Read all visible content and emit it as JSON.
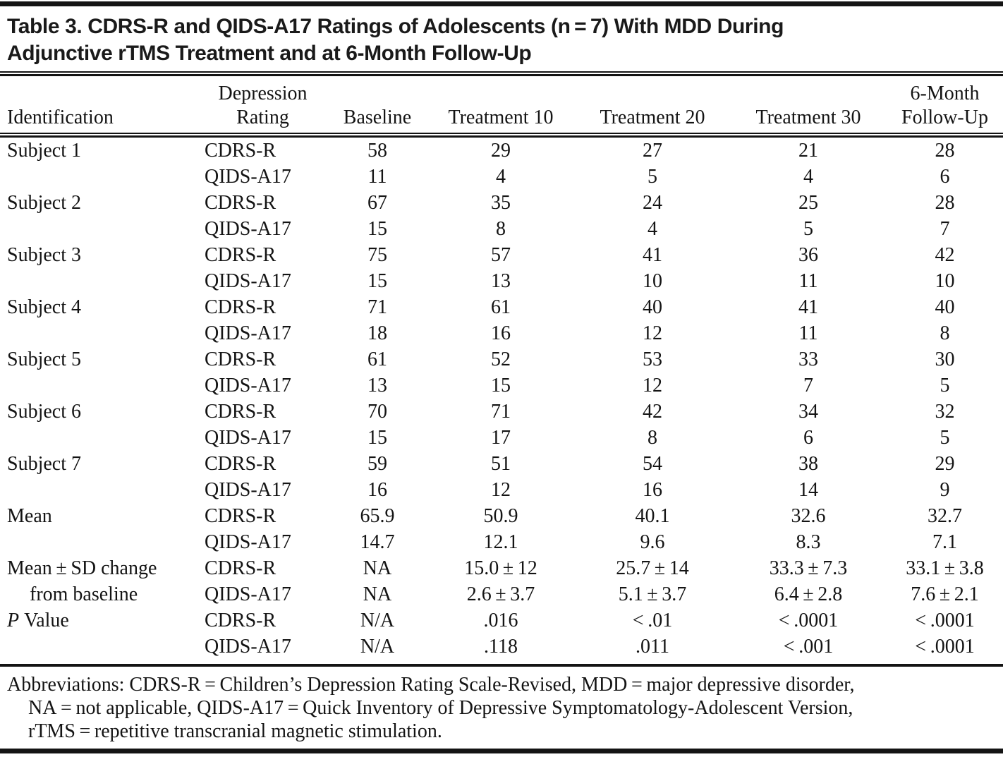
{
  "title": {
    "line1": "Table 3. CDRS-R and QIDS-A17 Ratings of Adolescents (n = 7) With MDD During",
    "line2": "Adjunctive rTMS Treatment and at 6-Month Follow-Up"
  },
  "table": {
    "header": {
      "identification": "Identification",
      "rating_line1": "Depression",
      "rating_line2": "Rating",
      "baseline": "Baseline",
      "treatment10": "Treatment 10",
      "treatment20": "Treatment 20",
      "treatment30": "Treatment 30",
      "followup_line1": "6-Month",
      "followup_line2": "Follow-Up"
    },
    "rows": [
      {
        "id": "Subject 1",
        "rating": "CDRS-R",
        "baseline": "58",
        "t10": "29",
        "t20": "27",
        "t30": "21",
        "fu": "28"
      },
      {
        "id": "",
        "rating": "QIDS-A17",
        "baseline": "11",
        "t10": "4",
        "t20": "5",
        "t30": "4",
        "fu": "6"
      },
      {
        "id": "Subject 2",
        "rating": "CDRS-R",
        "baseline": "67",
        "t10": "35",
        "t20": "24",
        "t30": "25",
        "fu": "28"
      },
      {
        "id": "",
        "rating": "QIDS-A17",
        "baseline": "15",
        "t10": "8",
        "t20": "4",
        "t30": "5",
        "fu": "7"
      },
      {
        "id": "Subject 3",
        "rating": "CDRS-R",
        "baseline": "75",
        "t10": "57",
        "t20": "41",
        "t30": "36",
        "fu": "42"
      },
      {
        "id": "",
        "rating": "QIDS-A17",
        "baseline": "15",
        "t10": "13",
        "t20": "10",
        "t30": "11",
        "fu": "10"
      },
      {
        "id": "Subject 4",
        "rating": "CDRS-R",
        "baseline": "71",
        "t10": "61",
        "t20": "40",
        "t30": "41",
        "fu": "40"
      },
      {
        "id": "",
        "rating": "QIDS-A17",
        "baseline": "18",
        "t10": "16",
        "t20": "12",
        "t30": "11",
        "fu": "8"
      },
      {
        "id": "Subject 5",
        "rating": "CDRS-R",
        "baseline": "61",
        "t10": "52",
        "t20": "53",
        "t30": "33",
        "fu": "30"
      },
      {
        "id": "",
        "rating": "QIDS-A17",
        "baseline": "13",
        "t10": "15",
        "t20": "12",
        "t30": "7",
        "fu": "5"
      },
      {
        "id": "Subject 6",
        "rating": "CDRS-R",
        "baseline": "70",
        "t10": "71",
        "t20": "42",
        "t30": "34",
        "fu": "32"
      },
      {
        "id": "",
        "rating": "QIDS-A17",
        "baseline": "15",
        "t10": "17",
        "t20": "8",
        "t30": "6",
        "fu": "5"
      },
      {
        "id": "Subject 7",
        "rating": "CDRS-R",
        "baseline": "59",
        "t10": "51",
        "t20": "54",
        "t30": "38",
        "fu": "29"
      },
      {
        "id": "",
        "rating": "QIDS-A17",
        "baseline": "16",
        "t10": "12",
        "t20": "16",
        "t30": "14",
        "fu": "9"
      },
      {
        "id": "Mean",
        "rating": "CDRS-R",
        "baseline": "65.9",
        "t10": "50.9",
        "t20": "40.1",
        "t30": "32.6",
        "fu": "32.7"
      },
      {
        "id": "",
        "rating": "QIDS-A17",
        "baseline": "14.7",
        "t10": "12.1",
        "t20": "9.6",
        "t30": "8.3",
        "fu": "7.1"
      },
      {
        "id": "Mean ± SD change",
        "rating": "CDRS-R",
        "baseline": "NA",
        "t10": "15.0 ± 12",
        "t20": "25.7 ± 14",
        "t30": "33.3 ± 7.3",
        "fu": "33.1 ± 3.8"
      },
      {
        "id": "from baseline",
        "rating": "QIDS-A17",
        "baseline": "NA",
        "t10": "2.6 ± 3.7",
        "t20": "5.1 ± 3.7",
        "t30": "6.4 ± 2.8",
        "fu": "7.6 ± 2.1"
      },
      {
        "id_italic": "P",
        "id_rest": " Value",
        "rating": "CDRS-R",
        "baseline": "N/A",
        "t10": ".016",
        "t20": "< .01",
        "t30": "< .0001",
        "fu": "< .0001"
      },
      {
        "id": "",
        "rating": "QIDS-A17",
        "baseline": "N/A",
        "t10": ".118",
        "t20": ".011",
        "t30": "< .001",
        "fu": "< .0001"
      }
    ]
  },
  "footnote": {
    "line1": "Abbreviations: CDRS-R = Children’s Depression Rating Scale-Revised, MDD = major depressive disorder,",
    "line2": "NA = not applicable, QIDS-A17 = Quick Inventory of Depressive Symptomatology-Adolescent Version,",
    "line3": "rTMS = repetitive transcranial magnetic stimulation."
  }
}
